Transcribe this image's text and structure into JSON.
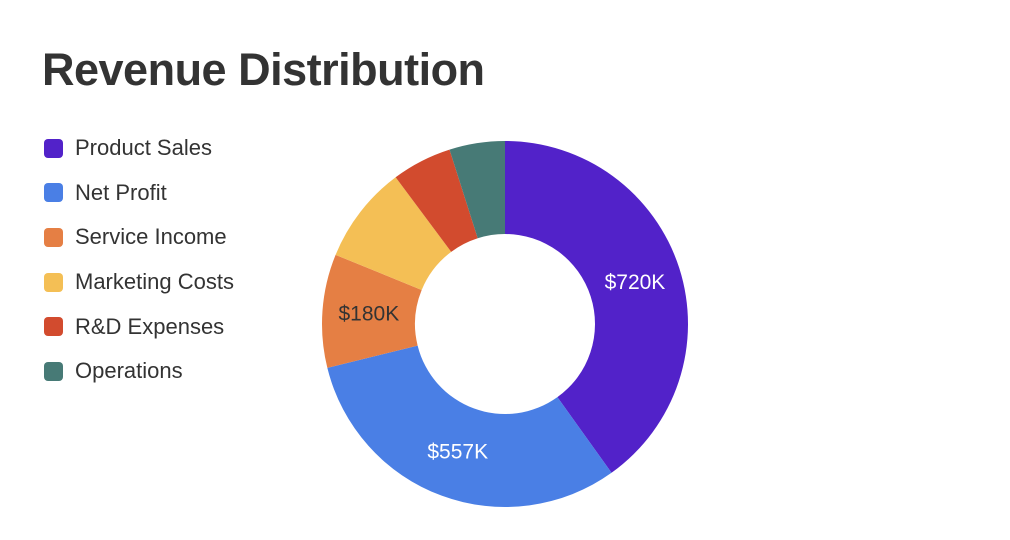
{
  "chart_data": {
    "type": "pie",
    "title": "Revenue Distribution",
    "donut": true,
    "legend_position": "left",
    "slices": [
      {
        "label": "Product Sales",
        "value": 720,
        "color": "#5222C9",
        "data_label": "$720K",
        "label_color": "#ffffff"
      },
      {
        "label": "Net Profit",
        "value": 557,
        "color": "#4A7FE5",
        "data_label": "$557K",
        "label_color": "#ffffff"
      },
      {
        "label": "Service Income",
        "value": 180,
        "color": "#E57F44",
        "data_label": "$180K",
        "label_color": "#333333"
      },
      {
        "label": "Marketing Costs",
        "value": 155,
        "color": "#F4BF55",
        "data_label": "",
        "label_color": "#333333"
      },
      {
        "label": "R&D Expenses",
        "value": 95,
        "color": "#D24B2E",
        "data_label": "",
        "label_color": "#ffffff"
      },
      {
        "label": "Operations",
        "value": 88,
        "color": "#477A76",
        "data_label": "",
        "label_color": "#ffffff"
      }
    ]
  }
}
